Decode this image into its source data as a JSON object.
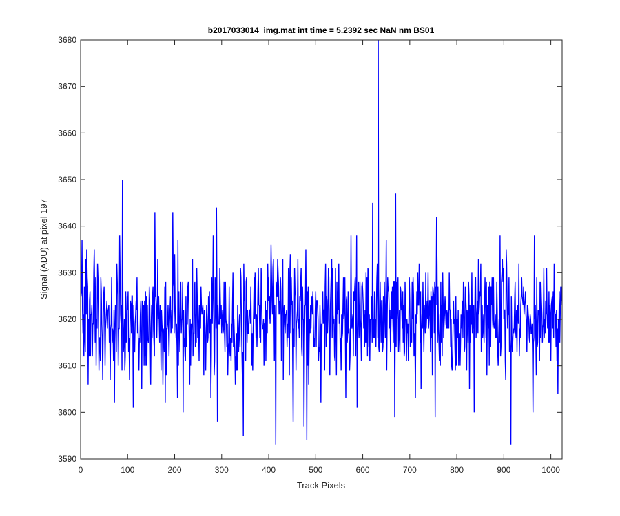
{
  "chart_data": {
    "type": "line",
    "title": "b2017033014_img.mat int time = 5.2392 sec  NaN nm BS01",
    "xlabel": "Track Pixels",
    "ylabel": "Signal (ADU) at pixel 197",
    "xlim": [
      0,
      1024
    ],
    "ylim": [
      3590,
      3680
    ],
    "xticks": [
      0,
      100,
      200,
      300,
      400,
      500,
      600,
      700,
      800,
      900,
      1000
    ],
    "yticks": [
      3590,
      3600,
      3610,
      3620,
      3630,
      3640,
      3650,
      3660,
      3670,
      3680
    ],
    "grid": false,
    "legend": "none",
    "line_color": "#0000ff",
    "series": [
      {
        "x_start": 1,
        "x_step": 1,
        "baseline": 3620,
        "noise_std": 6,
        "count": 1024,
        "points": [
          [
            3,
            3637
          ],
          [
            7,
            3612
          ],
          [
            13,
            3635
          ],
          [
            16,
            3606
          ],
          [
            29,
            3635
          ],
          [
            47,
            3607
          ],
          [
            72,
            3602
          ],
          [
            83,
            3638
          ],
          [
            89,
            3650
          ],
          [
            112,
            3601
          ],
          [
            130,
            3605
          ],
          [
            158,
            3643
          ],
          [
            180,
            3602
          ],
          [
            196,
            3643
          ],
          [
            218,
            3600
          ],
          [
            262,
            3608
          ],
          [
            282,
            3638
          ],
          [
            289,
            3644
          ],
          [
            291,
            3598
          ],
          [
            346,
            3595
          ],
          [
            390,
            3610
          ],
          [
            405,
            3636
          ],
          [
            415,
            3593
          ],
          [
            452,
            3598
          ],
          [
            475,
            3597
          ],
          [
            481,
            3594
          ],
          [
            530,
            3608
          ],
          [
            564,
            3603
          ],
          [
            588,
            3601
          ],
          [
            621,
            3645
          ],
          [
            633,
            3680
          ],
          [
            668,
            3599
          ],
          [
            670,
            3647
          ],
          [
            712,
            3603
          ],
          [
            754,
            3599
          ],
          [
            757,
            3642
          ],
          [
            837,
            3600
          ],
          [
            915,
            3593
          ],
          [
            962,
            3600
          ],
          [
            1015,
            3604
          ]
        ]
      }
    ]
  }
}
